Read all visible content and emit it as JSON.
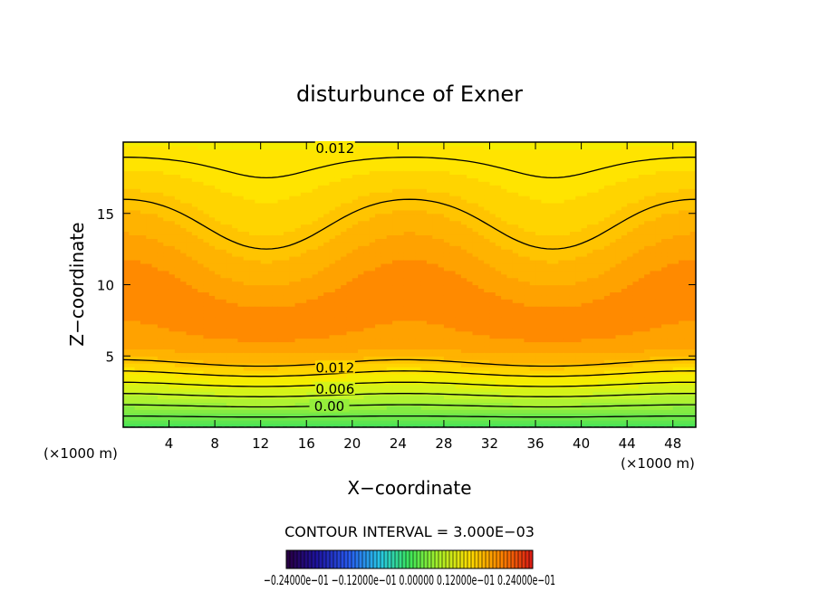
{
  "chart_data": {
    "type": "heatmap",
    "title": "disturbunce of Exner",
    "xlabel": "X−coordinate",
    "ylabel": "Z−coordinate",
    "x_unit_left": "(×1000 m)",
    "x_unit_right": "(×1000 m)",
    "xlim": [
      0,
      50
    ],
    "ylim": [
      0,
      20
    ],
    "x_ticks": [
      4,
      8,
      12,
      16,
      20,
      24,
      28,
      32,
      36,
      40,
      44,
      48
    ],
    "y_ticks": [
      5,
      10,
      15
    ],
    "x_tick_labels": [
      "4",
      "8",
      "12",
      "16",
      "20",
      "24",
      "28",
      "32",
      "36",
      "40",
      "44",
      "48"
    ],
    "y_tick_labels": [
      "5",
      "10",
      "15"
    ],
    "contour_labels": [
      {
        "text": "0.012",
        "x": 18.5,
        "z": 19.5
      },
      {
        "text": "0.012",
        "x": 18.5,
        "z": 4.1
      },
      {
        "text": "0.006",
        "x": 18.5,
        "z": 2.6
      },
      {
        "text": "0.00",
        "x": 18.0,
        "z": 1.4
      }
    ],
    "field_profile": {
      "z": [
        0,
        0.5,
        1,
        1.5,
        2,
        2.5,
        3,
        3.5,
        4,
        4.5,
        5,
        6,
        7,
        8,
        9,
        10,
        11,
        12,
        13,
        14,
        15,
        16,
        17,
        18,
        19,
        20
      ],
      "value": [
        -0.003,
        -0.001,
        0.001,
        0.003,
        0.005,
        0.007,
        0.009,
        0.011,
        0.013,
        0.015,
        0.0168,
        0.0183,
        0.0192,
        0.0196,
        0.0193,
        0.0186,
        0.0178,
        0.017,
        0.0162,
        0.0154,
        0.0146,
        0.0138,
        0.013,
        0.0123,
        0.0117,
        0.011
      ]
    },
    "mid_lobe_amplitude_z": 2.0,
    "color_stops": [
      {
        "value": -0.006,
        "color": "#22e062"
      },
      {
        "value": 0.0,
        "color": "#6fe84a"
      },
      {
        "value": 0.006,
        "color": "#c4f528"
      },
      {
        "value": 0.01,
        "color": "#f2f000"
      },
      {
        "value": 0.012,
        "color": "#ffe400"
      },
      {
        "value": 0.015,
        "color": "#ffc400"
      },
      {
        "value": 0.018,
        "color": "#ffa200"
      },
      {
        "value": 0.0205,
        "color": "#ff7a00"
      }
    ],
    "contour_interval_text": "CONTOUR INTERVAL = 3.000E−03",
    "colorbar_labels_text": "−0.24000e−01  −0.12000e−01  0.00000  0.12000e−01  0.24000e−01",
    "colorbar_range": [
      -0.024,
      0.024
    ]
  }
}
